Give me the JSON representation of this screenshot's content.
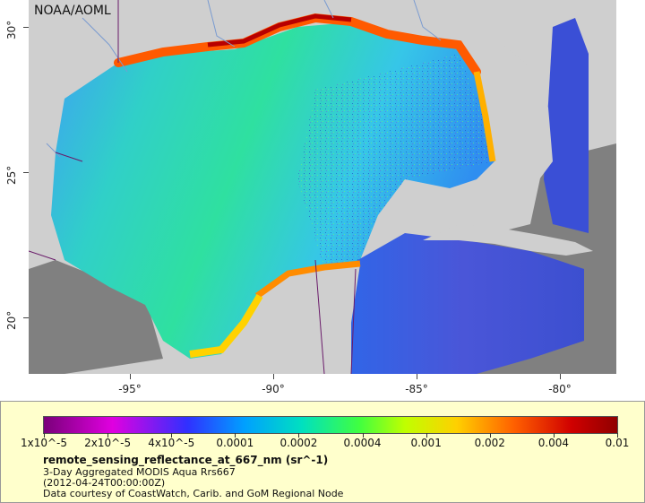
{
  "map": {
    "agency_label": "NOAA/AOML",
    "y_axis_labels": [
      "30°",
      "25°",
      "20°"
    ],
    "x_axis_labels": [
      "-95°",
      "-90°",
      "-85°",
      "-80°"
    ],
    "colors": {
      "land": "#cfcfcf",
      "no_data": "#808080",
      "boundaries": "#6a1b6a",
      "rivers": "#7a9bd0"
    }
  },
  "legend": {
    "scale_labels": [
      "1x10^-5",
      "2x10^-5",
      "4x10^-5",
      "0.0001",
      "0.0002",
      "0.0004",
      "0.001",
      "0.002",
      "0.004",
      "0.01"
    ],
    "title": "remote_sensing_reflectance_at_667_nm (sr^-1)",
    "line1": "3-Day Aggregated MODIS Aqua Rrs667",
    "line2": "(2012-04-24T00:00:00Z)",
    "line3": "Data courtesy of CoastWatch, Carib. and GoM Regional Node"
  }
}
